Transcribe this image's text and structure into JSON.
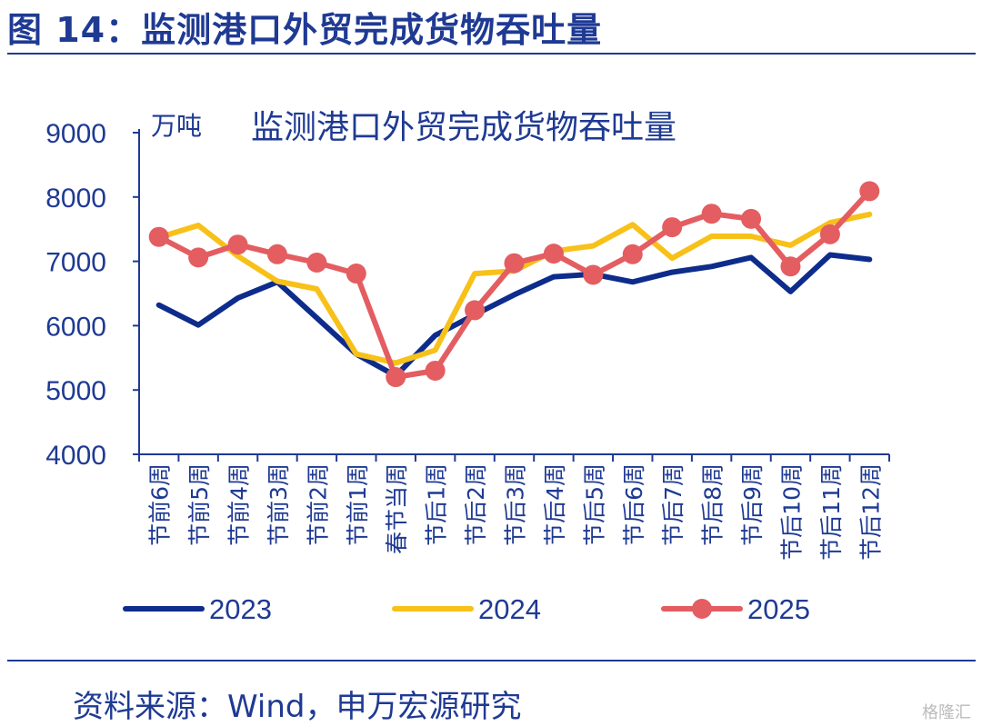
{
  "header": {
    "figure_title": "图 14：监测港口外贸完成货物吞吐量"
  },
  "footer": {
    "source": "资料来源：Wind，申万宏源研究",
    "watermark": "格隆汇"
  },
  "chart_data": {
    "type": "line",
    "title": "监测港口外贸完成货物吞吐量",
    "unit_label": "万吨",
    "ylim": [
      4000,
      9000
    ],
    "yticks": [
      4000,
      5000,
      6000,
      7000,
      8000,
      9000
    ],
    "categories": [
      "节前6周",
      "节前5周",
      "节前4周",
      "节前3周",
      "节前2周",
      "节前1周",
      "春节当周",
      "节后1周",
      "节后2周",
      "节后3周",
      "节后4周",
      "节后5周",
      "节后6周",
      "节后7周",
      "节后8周",
      "节后9周",
      "节后10周",
      "节后11周",
      "节后12周"
    ],
    "series": [
      {
        "name": "2023",
        "color": "#0d2c8c",
        "markers": false,
        "values": [
          6320,
          6010,
          6430,
          6680,
          6120,
          5560,
          5220,
          5850,
          6170,
          6480,
          6760,
          6800,
          6680,
          6830,
          6920,
          7060,
          6530,
          7100,
          7030
        ]
      },
      {
        "name": "2024",
        "color": "#f7c11a",
        "markers": false,
        "values": [
          7370,
          7560,
          7080,
          6690,
          6570,
          5560,
          5420,
          5620,
          6810,
          6850,
          7160,
          7240,
          7570,
          7050,
          7390,
          7390,
          7250,
          7600,
          7730
        ]
      },
      {
        "name": "2025",
        "color": "#e35d61",
        "markers": true,
        "values": [
          7380,
          7060,
          7260,
          7110,
          6980,
          6810,
          5200,
          5300,
          6240,
          6970,
          7120,
          6790,
          7110,
          7530,
          7740,
          7660,
          6920,
          7420,
          8090
        ]
      }
    ],
    "legend_position": "bottom",
    "grid": false
  }
}
